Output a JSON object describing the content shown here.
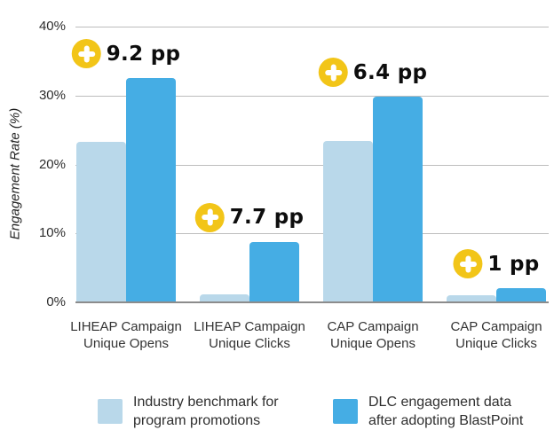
{
  "chart_data": {
    "type": "bar",
    "title": "",
    "xlabel": "",
    "ylabel": "Engagement Rate (%)",
    "ylim": [
      0,
      40
    ],
    "grid": true,
    "legend_position": "bottom",
    "yticks": [
      {
        "value": 0,
        "label": "0%"
      },
      {
        "value": 10,
        "label": "10%"
      },
      {
        "value": 20,
        "label": "20%"
      },
      {
        "value": 30,
        "label": "30%"
      },
      {
        "value": 40,
        "label": "40%"
      }
    ],
    "categories": [
      {
        "line1": "LIHEAP Campaign",
        "line2": "Unique Opens"
      },
      {
        "line1": "LIHEAP Campaign",
        "line2": "Unique Clicks"
      },
      {
        "line1": "CAP Campaign",
        "line2": "Unique Opens"
      },
      {
        "line1": "CAP Campaign",
        "line2": "Unique Clicks"
      }
    ],
    "series": [
      {
        "name": "Industry benchmark for program promotions",
        "color": "#b9d8ea",
        "values": [
          23.3,
          1.1,
          23.4,
          1.0
        ]
      },
      {
        "name": "DLC engagement data after adopting BlastPoint",
        "color": "#45ade4",
        "values": [
          32.5,
          8.8,
          29.8,
          2.0
        ]
      }
    ],
    "annotations": [
      {
        "label": "9.2 pp",
        "category_index": 0
      },
      {
        "label": "7.7 pp",
        "category_index": 1
      },
      {
        "label": "6.4 pp",
        "category_index": 2
      },
      {
        "label": "1 pp",
        "category_index": 3
      }
    ]
  },
  "legend": {
    "items": [
      {
        "line1": "Industry benchmark for",
        "line2": "program promotions",
        "color": "#b9d8ea"
      },
      {
        "line1": "DLC engagement data",
        "line2": "after adopting BlastPoint",
        "color": "#45ade4"
      }
    ]
  },
  "colors": {
    "plus_icon_bg": "#f2c518",
    "plus_icon_glyph": "#ffffff",
    "annotation_text": "#0d0d0d",
    "gridline": "#bdbdbd",
    "axis_line": "#8c8c8c"
  }
}
